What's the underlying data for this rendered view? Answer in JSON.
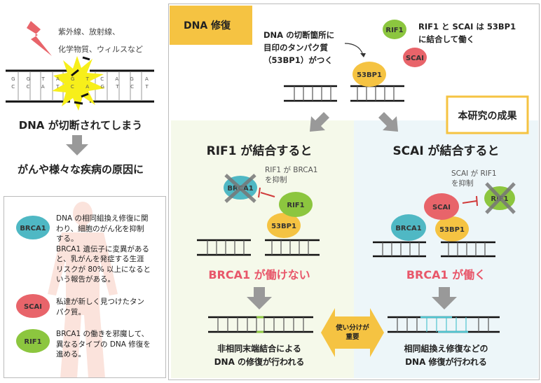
{
  "intro": {
    "causes": [
      "紫外線、放射線、",
      "化学物質、ウィルスなど"
    ],
    "dna_top": [
      "G",
      "G",
      "T",
      "A",
      "G",
      "T",
      "C",
      "A",
      "G",
      "A"
    ],
    "dna_bottom": [
      "C",
      "C",
      "A",
      "T",
      "C",
      "A",
      "G",
      "T",
      "C",
      "T"
    ],
    "cut_text": "DNA が切断されてしまう",
    "result_text": "がんや様々な疾病の原因に"
  },
  "legend": {
    "items": [
      {
        "protein": "BRCA1",
        "color": "#4fb8c4",
        "lines": [
          "DNA の相同組換え修復に関",
          "わり、細胞のがん化を抑制",
          "する。",
          "BRCA1 遺伝子に変異がある",
          "と、乳がんを発症する生涯",
          "リスクが 80% 以上になると",
          "いう報告がある。"
        ]
      },
      {
        "protein": "SCAI",
        "color": "#e8646a",
        "lines": [
          "私達が新しく見つけたタン",
          "パク質。"
        ]
      },
      {
        "protein": "RIF1",
        "color": "#8cc63f",
        "lines": [
          "BRCA1 の働きを邪魔して、",
          "異なるタイプの DNA 修復を",
          "進める。"
        ]
      }
    ]
  },
  "repair": {
    "title": "DNA 修復",
    "marker_text": [
      "DNA の切断箇所に",
      "目印のタンパク質",
      "（53BP1）がつく"
    ],
    "binding_text": [
      "RIF1 と SCAI は 53BP1",
      "に結合して働く"
    ],
    "result_badge": "本研究の成果",
    "proteins": {
      "p53bp1": "53BP1",
      "rif1": "RIF1",
      "scai": "SCAI",
      "brca1": "BRCA1"
    },
    "left": {
      "heading": "RIF1 が結合すると",
      "inhibit": [
        "RIF1 が BRCA1",
        "を抑制"
      ],
      "status": "BRCA1 が働けない",
      "outcome": [
        "非相同末端結合による",
        "DNA の修復が行われる"
      ]
    },
    "right": {
      "heading": "SCAI が結合すると",
      "inhibit": [
        "SCAI が RIF1",
        "を抑制"
      ],
      "status": "BRCA1 が働く",
      "outcome": [
        "相同組換え修復などの",
        "DNA 修復が行われる"
      ]
    },
    "balance": [
      "使い分けが",
      "重要"
    ],
    "colors": {
      "accent_yellow": "#f5c342",
      "status_pink": "#e8576a",
      "left_bg": "#f5f9ea",
      "right_bg": "#edf6f9"
    }
  }
}
